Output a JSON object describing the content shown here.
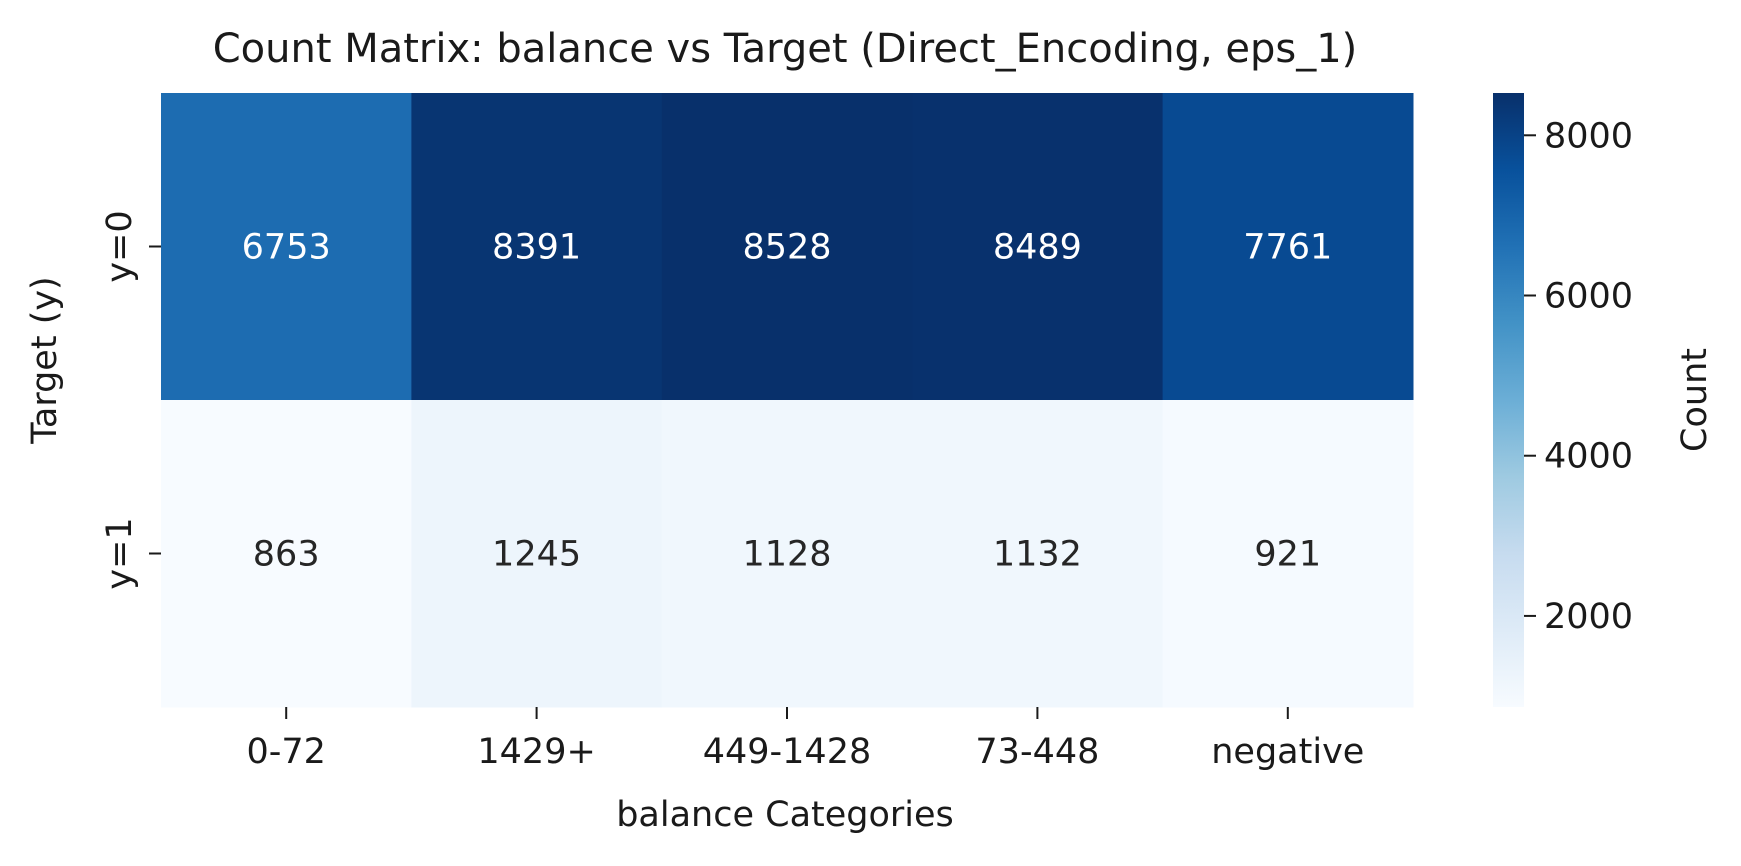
{
  "chart_data": {
    "type": "heatmap",
    "title": "Count Matrix: balance vs Target (Direct_Encoding, eps_1)",
    "xlabel": "balance Categories",
    "ylabel": "Target (y)",
    "x_categories": [
      "0-72",
      "1429+",
      "449-1428",
      "73-448",
      "negative"
    ],
    "y_categories": [
      "y=0",
      "y=1"
    ],
    "values": [
      [
        6753,
        8391,
        8528,
        8489,
        7761
      ],
      [
        863,
        1245,
        1128,
        1132,
        921
      ]
    ],
    "colormap": "Blues",
    "colorbar": {
      "label": "Count",
      "range": [
        863,
        8528
      ],
      "ticks": [
        2000,
        4000,
        6000,
        8000
      ],
      "tick_labels": [
        "2000",
        "4000",
        "6000",
        "8000"
      ]
    },
    "annotations": true
  }
}
